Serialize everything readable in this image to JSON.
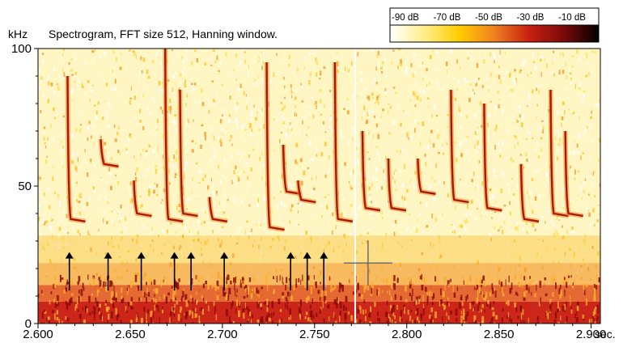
{
  "chart_data": {
    "type": "heatmap",
    "title": "Spectrogram, FFT size 512, Hanning window.",
    "ylabel": "kHz",
    "xlabel": "",
    "x_unit_label": "sec.",
    "xlim": [
      2.6,
      2.905
    ],
    "ylim": [
      0,
      100
    ],
    "x_ticks": [
      "2.600",
      "2.650",
      "2.700",
      "2.750",
      "2.800",
      "2.850",
      "2.900"
    ],
    "y_ticks": [
      "0",
      "50",
      "100"
    ],
    "colorbar": {
      "labels": [
        "-90 dB",
        "-70 dB",
        "-50 dB",
        "-30 dB",
        "-10 dB"
      ],
      "colors": [
        "#ffffff",
        "#ffee88",
        "#ffcc00",
        "#f08020",
        "#c82010",
        "#7a0a0a",
        "#000000"
      ]
    },
    "calls": [
      {
        "t": 2.616,
        "f_high": 90,
        "f_low": 38
      },
      {
        "t": 2.634,
        "f_high": 67,
        "f_low": 58
      },
      {
        "t": 2.652,
        "f_high": 52,
        "f_low": 40
      },
      {
        "t": 2.669,
        "f_high": 100,
        "f_low": 38
      },
      {
        "t": 2.677,
        "f_high": 85,
        "f_low": 40
      },
      {
        "t": 2.693,
        "f_high": 46,
        "f_low": 38
      },
      {
        "t": 2.724,
        "f_high": 95,
        "f_low": 35
      },
      {
        "t": 2.733,
        "f_high": 65,
        "f_low": 48
      },
      {
        "t": 2.741,
        "f_high": 52,
        "f_low": 45
      },
      {
        "t": 2.761,
        "f_high": 95,
        "f_low": 38
      },
      {
        "t": 2.776,
        "f_high": 70,
        "f_low": 42
      },
      {
        "t": 2.79,
        "f_high": 60,
        "f_low": 42
      },
      {
        "t": 2.806,
        "f_high": 60,
        "f_low": 48
      },
      {
        "t": 2.824,
        "f_high": 85,
        "f_low": 45
      },
      {
        "t": 2.842,
        "f_high": 80,
        "f_low": 42
      },
      {
        "t": 2.862,
        "f_high": 58,
        "f_low": 38
      },
      {
        "t": 2.878,
        "f_high": 85,
        "f_low": 40
      },
      {
        "t": 2.886,
        "f_high": 70,
        "f_low": 40
      }
    ],
    "arrows": [
      {
        "t": 2.617,
        "f_top": 26,
        "f_bottom": 12
      },
      {
        "t": 2.638,
        "f_top": 26,
        "f_bottom": 12
      },
      {
        "t": 2.656,
        "f_top": 26,
        "f_bottom": 12
      },
      {
        "t": 2.674,
        "f_top": 26,
        "f_bottom": 12
      },
      {
        "t": 2.683,
        "f_top": 26,
        "f_bottom": 12
      },
      {
        "t": 2.701,
        "f_top": 26,
        "f_bottom": 12
      },
      {
        "t": 2.737,
        "f_top": 26,
        "f_bottom": 12
      },
      {
        "t": 2.746,
        "f_top": 26,
        "f_bottom": 12
      },
      {
        "t": 2.755,
        "f_top": 26,
        "f_bottom": 12
      }
    ],
    "cursor": {
      "t": 2.779,
      "f": 22
    },
    "markers_t": [
      2.772
    ]
  }
}
